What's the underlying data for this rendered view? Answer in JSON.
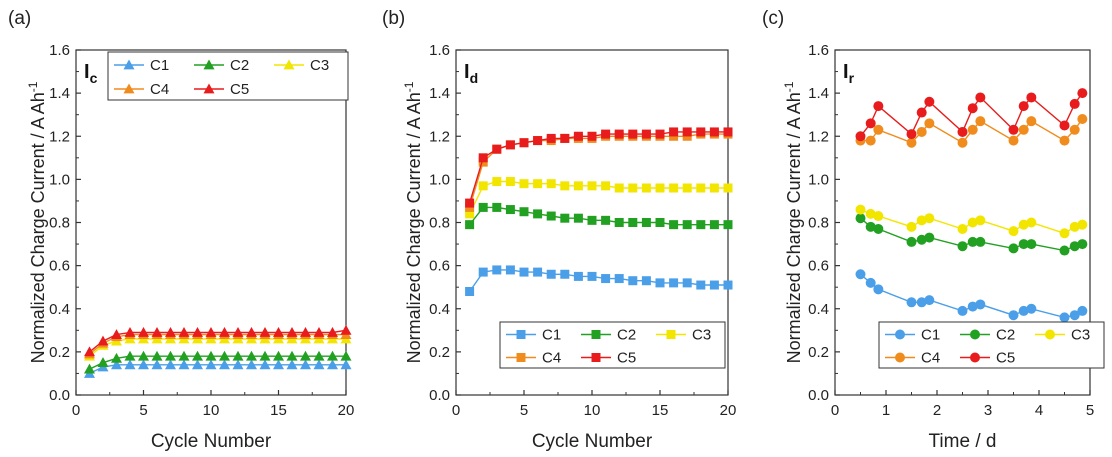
{
  "chart_data": [
    {
      "type": "line",
      "panel_label": "(a)",
      "tag": "I",
      "tag_sub": "c",
      "xlabel": "Cycle Number",
      "ylabel": "Normalized Charge Current / A Ah",
      "ylabel_sup": "-1",
      "xlim": [
        0,
        20
      ],
      "ylim": [
        0,
        1.6
      ],
      "xticks": [
        "0",
        "5",
        "10",
        "15",
        "20"
      ],
      "yticks": [
        "0.0",
        "0.2",
        "0.4",
        "0.6",
        "0.8",
        "1.0",
        "1.2",
        "1.4",
        "1.6"
      ],
      "marker": "triangle",
      "legend_position": "top",
      "x": [
        1,
        2,
        3,
        4,
        5,
        6,
        7,
        8,
        9,
        10,
        11,
        12,
        13,
        14,
        15,
        16,
        17,
        18,
        19,
        20
      ],
      "series": [
        {
          "name": "C1",
          "color": "#4a9fe8",
          "values": [
            0.1,
            0.13,
            0.14,
            0.14,
            0.14,
            0.14,
            0.14,
            0.14,
            0.14,
            0.14,
            0.14,
            0.14,
            0.14,
            0.14,
            0.14,
            0.14,
            0.14,
            0.14,
            0.14,
            0.14
          ]
        },
        {
          "name": "C2",
          "color": "#22a022",
          "values": [
            0.12,
            0.15,
            0.17,
            0.18,
            0.18,
            0.18,
            0.18,
            0.18,
            0.18,
            0.18,
            0.18,
            0.18,
            0.18,
            0.18,
            0.18,
            0.18,
            0.18,
            0.18,
            0.18,
            0.18
          ]
        },
        {
          "name": "C3",
          "color": "#f2e600",
          "values": [
            0.18,
            0.23,
            0.25,
            0.26,
            0.26,
            0.26,
            0.26,
            0.26,
            0.26,
            0.26,
            0.26,
            0.26,
            0.26,
            0.26,
            0.26,
            0.26,
            0.26,
            0.26,
            0.26,
            0.26
          ]
        },
        {
          "name": "C4",
          "color": "#f08c1e",
          "values": [
            0.19,
            0.24,
            0.27,
            0.28,
            0.28,
            0.28,
            0.28,
            0.28,
            0.28,
            0.28,
            0.28,
            0.28,
            0.28,
            0.28,
            0.28,
            0.28,
            0.28,
            0.28,
            0.28,
            0.28
          ]
        },
        {
          "name": "C5",
          "color": "#e81c1c",
          "values": [
            0.2,
            0.25,
            0.28,
            0.29,
            0.29,
            0.29,
            0.29,
            0.29,
            0.29,
            0.29,
            0.29,
            0.29,
            0.29,
            0.29,
            0.29,
            0.29,
            0.29,
            0.29,
            0.29,
            0.3
          ]
        }
      ]
    },
    {
      "type": "line",
      "panel_label": "(b)",
      "tag": "I",
      "tag_sub": "d",
      "xlabel": "Cycle Number",
      "ylabel": "Normalized Charge Current / A Ah",
      "ylabel_sup": "-1",
      "xlim": [
        0,
        20
      ],
      "ylim": [
        0,
        1.6
      ],
      "xticks": [
        "0",
        "5",
        "10",
        "15",
        "20"
      ],
      "yticks": [
        "0.0",
        "0.2",
        "0.4",
        "0.6",
        "0.8",
        "1.0",
        "1.2",
        "1.4",
        "1.6"
      ],
      "marker": "square",
      "legend_position": "bottom",
      "x": [
        1,
        2,
        3,
        4,
        5,
        6,
        7,
        8,
        9,
        10,
        11,
        12,
        13,
        14,
        15,
        16,
        17,
        18,
        19,
        20
      ],
      "series": [
        {
          "name": "C1",
          "color": "#4a9fe8",
          "values": [
            0.48,
            0.57,
            0.58,
            0.58,
            0.57,
            0.57,
            0.56,
            0.56,
            0.55,
            0.55,
            0.54,
            0.54,
            0.53,
            0.53,
            0.52,
            0.52,
            0.52,
            0.51,
            0.51,
            0.51
          ]
        },
        {
          "name": "C2",
          "color": "#22a022",
          "values": [
            0.79,
            0.87,
            0.87,
            0.86,
            0.85,
            0.84,
            0.83,
            0.82,
            0.82,
            0.81,
            0.81,
            0.8,
            0.8,
            0.8,
            0.8,
            0.79,
            0.79,
            0.79,
            0.79,
            0.79
          ]
        },
        {
          "name": "C3",
          "color": "#f2e600",
          "values": [
            0.84,
            0.97,
            0.99,
            0.99,
            0.98,
            0.98,
            0.98,
            0.97,
            0.97,
            0.97,
            0.97,
            0.96,
            0.96,
            0.96,
            0.96,
            0.96,
            0.96,
            0.96,
            0.96,
            0.96
          ]
        },
        {
          "name": "C4",
          "color": "#f08c1e",
          "values": [
            0.87,
            1.08,
            1.14,
            1.16,
            1.17,
            1.18,
            1.18,
            1.19,
            1.19,
            1.19,
            1.2,
            1.2,
            1.2,
            1.2,
            1.2,
            1.2,
            1.2,
            1.21,
            1.21,
            1.21
          ]
        },
        {
          "name": "C5",
          "color": "#e81c1c",
          "values": [
            0.89,
            1.1,
            1.14,
            1.16,
            1.17,
            1.18,
            1.19,
            1.19,
            1.2,
            1.2,
            1.21,
            1.21,
            1.21,
            1.21,
            1.21,
            1.22,
            1.22,
            1.22,
            1.22,
            1.22
          ]
        }
      ]
    },
    {
      "type": "line",
      "panel_label": "(c)",
      "tag": "I",
      "tag_sub": "r",
      "xlabel": "Time / d",
      "ylabel": "Normalized Charge Current / A Ah",
      "ylabel_sup": "-1",
      "xlim": [
        0,
        5
      ],
      "ylim": [
        0,
        1.6
      ],
      "xticks": [
        "0",
        "1",
        "2",
        "3",
        "4",
        "5"
      ],
      "yticks": [
        "0.0",
        "0.2",
        "0.4",
        "0.6",
        "0.8",
        "1.0",
        "1.2",
        "1.4",
        "1.6"
      ],
      "marker": "circle",
      "legend_position": "bottom",
      "x": [
        0.5,
        0.7,
        0.85,
        1.5,
        1.7,
        1.85,
        2.5,
        2.7,
        2.85,
        3.5,
        3.7,
        3.85,
        4.5,
        4.7,
        4.85
      ],
      "series": [
        {
          "name": "C1",
          "color": "#4a9fe8",
          "values": [
            0.56,
            0.52,
            0.49,
            0.43,
            0.43,
            0.44,
            0.39,
            0.41,
            0.42,
            0.37,
            0.39,
            0.4,
            0.36,
            0.37,
            0.39
          ]
        },
        {
          "name": "C2",
          "color": "#22a022",
          "values": [
            0.82,
            0.78,
            0.77,
            0.71,
            0.72,
            0.73,
            0.69,
            0.71,
            0.71,
            0.68,
            0.7,
            0.7,
            0.67,
            0.69,
            0.7
          ]
        },
        {
          "name": "C3",
          "color": "#f2e600",
          "values": [
            0.86,
            0.84,
            0.83,
            0.78,
            0.81,
            0.82,
            0.77,
            0.8,
            0.81,
            0.76,
            0.79,
            0.8,
            0.75,
            0.78,
            0.79
          ]
        },
        {
          "name": "C4",
          "color": "#f08c1e",
          "values": [
            1.18,
            1.18,
            1.23,
            1.17,
            1.22,
            1.26,
            1.17,
            1.23,
            1.27,
            1.18,
            1.23,
            1.27,
            1.18,
            1.23,
            1.28
          ]
        },
        {
          "name": "C5",
          "color": "#e81c1c",
          "values": [
            1.2,
            1.26,
            1.34,
            1.21,
            1.31,
            1.36,
            1.22,
            1.33,
            1.38,
            1.23,
            1.34,
            1.38,
            1.25,
            1.35,
            1.4
          ]
        }
      ]
    }
  ]
}
